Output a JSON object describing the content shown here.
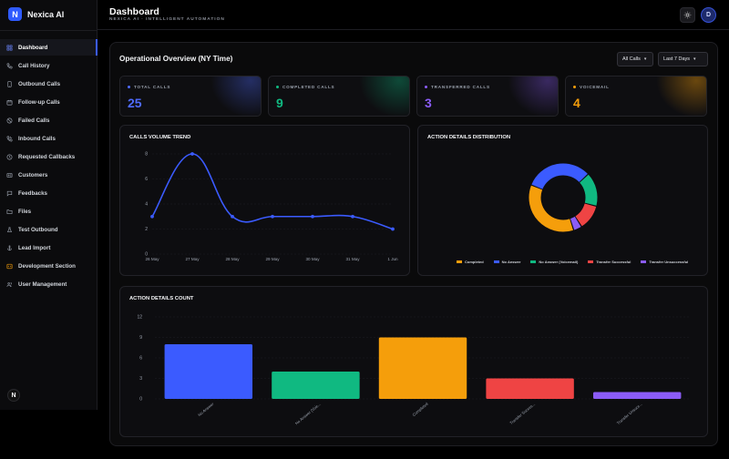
{
  "brand": {
    "logo_letter": "N",
    "name": "Nexica AI"
  },
  "sidebar": {
    "items": [
      {
        "label": "Dashboard",
        "icon": "grid-icon",
        "active": true
      },
      {
        "label": "Call History",
        "icon": "phone-icon"
      },
      {
        "label": "Outbound Calls",
        "icon": "device-icon"
      },
      {
        "label": "Follow-up Calls",
        "icon": "calendar-icon"
      },
      {
        "label": "Failed Calls",
        "icon": "ban-icon"
      },
      {
        "label": "Inbound Calls",
        "icon": "phone-incoming-icon"
      },
      {
        "label": "Requested Callbacks",
        "icon": "clock-icon"
      },
      {
        "label": "Customers",
        "icon": "id-card-icon"
      },
      {
        "label": "Feedbacks",
        "icon": "message-icon"
      },
      {
        "label": "Files",
        "icon": "folder-icon"
      },
      {
        "label": "Test Outbound",
        "icon": "flask-icon"
      },
      {
        "label": "Lead Import",
        "icon": "anchor-icon"
      },
      {
        "label": "Development Section",
        "icon": "code-icon"
      },
      {
        "label": "User Management",
        "icon": "users-icon"
      }
    ],
    "footer_badge": "N"
  },
  "header": {
    "title": "Dashboard",
    "subtitle": "Nexica AI · Intelligent Automation",
    "theme_icon": "sun-icon",
    "avatar_letter": "D"
  },
  "overview": {
    "title": "Operational Overview (NY Time)",
    "filter_type": "All Calls",
    "filter_range": "Last 7 Days"
  },
  "stats": [
    {
      "label": "Total Calls",
      "value": "25",
      "color": "#4f6bff"
    },
    {
      "label": "Completed Calls",
      "value": "9",
      "color": "#10b981"
    },
    {
      "label": "Transferred Calls",
      "value": "3",
      "color": "#8b5cf6"
    },
    {
      "label": "Voicemail",
      "value": "4",
      "color": "#f59e0b"
    }
  ],
  "chart_data": [
    {
      "type": "line",
      "title": "Calls Volume Trend",
      "x": [
        "26 May",
        "27 May",
        "28 May",
        "29 May",
        "30 May",
        "31 May",
        "1 Jun"
      ],
      "series": [
        {
          "values": [
            3,
            8,
            3,
            3,
            3,
            3,
            2
          ],
          "color": "#3b5bff"
        }
      ],
      "yticks": [
        0,
        2,
        4,
        6,
        8
      ],
      "ylim": [
        0,
        8
      ],
      "grid": true
    },
    {
      "type": "pie",
      "title": "Action Details Distribution",
      "categories": [
        "Completed",
        "No Answer",
        "No Answer (Voicemail)",
        "Transfer Successful",
        "Transfer Unsuccessful"
      ],
      "values": [
        9,
        8,
        4,
        3,
        1
      ],
      "colors": [
        "#f59e0b",
        "#3b5bff",
        "#10b981",
        "#ef4444",
        "#8b5cf6"
      ],
      "legend": "bottom"
    },
    {
      "type": "bar",
      "title": "Action Details Count",
      "categories": [
        "No Answer",
        "No Answer (Voic...",
        "Completed",
        "Transfer Succes...",
        "Transfer Unsucc..."
      ],
      "values": [
        8,
        4,
        9,
        3,
        1
      ],
      "colors": [
        "#3b5bff",
        "#10b981",
        "#f59e0b",
        "#ef4444",
        "#8b5cf6"
      ],
      "yticks": [
        0,
        3,
        6,
        9,
        12
      ],
      "ylim": [
        0,
        12
      ],
      "grid": true
    }
  ]
}
